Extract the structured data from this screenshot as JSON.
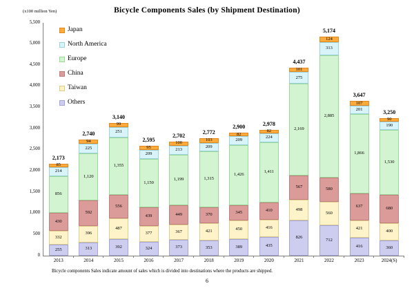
{
  "page": {
    "title": "Bicycle Components Sales (by Shipment Destination)",
    "footer_note": "Bicycle components Sales indicate amount of sales which is divided into destinations where the products are shipped.",
    "page_number": "6"
  },
  "colors": {
    "axis": "#808080",
    "text": "#000000"
  },
  "chart_data": {
    "type": "bar",
    "stacked": true,
    "title": "Bicycle Components Sales (by Shipment Destination)",
    "unit_label": "(x100 million Yen)",
    "xlabel": "",
    "ylabel": "(x100 million Yen)",
    "ylim": [
      0,
      5500
    ],
    "y_ticks": [
      0,
      500,
      1000,
      1500,
      2000,
      2500,
      3000,
      3500,
      4000,
      4500,
      5000,
      5500
    ],
    "grid": false,
    "legend_position": "top-left-vertical",
    "categories": [
      "2013",
      "2014",
      "2015",
      "2016",
      "2017",
      "2018",
      "2019",
      "2020",
      "2021",
      "2022",
      "2023",
      "2024(S)"
    ],
    "totals": [
      2173,
      2740,
      3140,
      2595,
      2702,
      2772,
      2900,
      2978,
      4437,
      5174,
      3647,
      3250
    ],
    "series": [
      {
        "name": "Japan",
        "fill": "#FBAA3C",
        "border": "#E0881E",
        "values": [
          85,
          94,
          99,
          95,
          100,
          103,
          82,
          82,
          101,
          124,
          107,
          90
        ]
      },
      {
        "name": "North America",
        "fill": "#D8F4F9",
        "border": "#9BD2DE",
        "values": [
          214,
          225,
          251,
          209,
          213,
          209,
          209,
          224,
          275,
          313,
          201,
          190
        ]
      },
      {
        "name": "Europe",
        "fill": "#D3F4D0",
        "border": "#9AD898",
        "values": [
          856,
          1120,
          1355,
          1150,
          1199,
          1315,
          1426,
          1411,
          2169,
          2885,
          1866,
          1530
        ]
      },
      {
        "name": "China",
        "fill": "#DB9B99",
        "border": "#C07E7C",
        "values": [
          430,
          592,
          556,
          439,
          449,
          370,
          345,
          410,
          567,
          580,
          637,
          680
        ]
      },
      {
        "name": "Taiwan",
        "fill": "#FEF3C9",
        "border": "#DECC8C",
        "values": [
          332,
          396,
          487,
          377,
          367,
          421,
          450,
          416,
          498,
          560,
          421,
          400
        ]
      },
      {
        "name": "Others",
        "fill": "#CDCDF0",
        "border": "#A4A4D8",
        "values": [
          255,
          313,
          392,
          324,
          373,
          353,
          389,
          435,
          826,
          712,
          416,
          360
        ]
      }
    ]
  }
}
